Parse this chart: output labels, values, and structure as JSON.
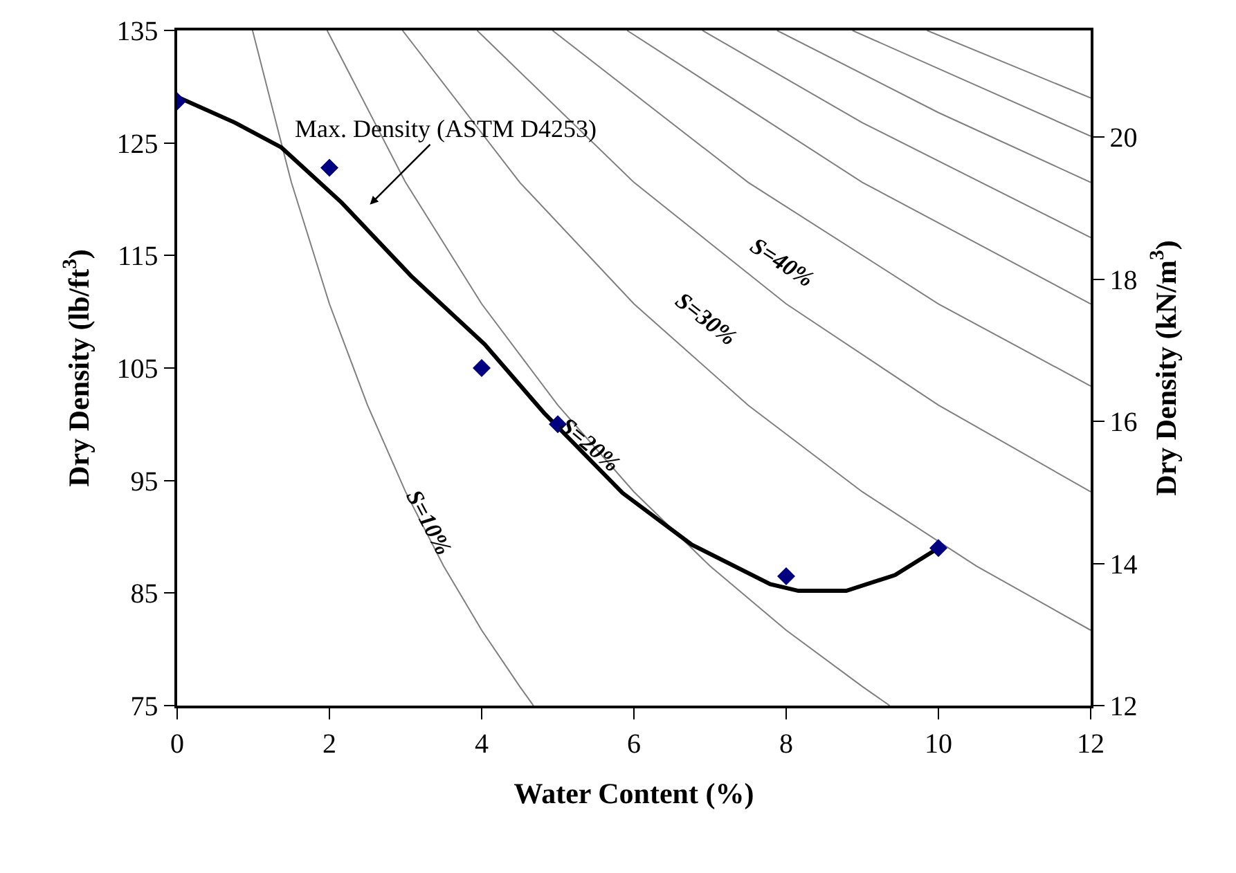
{
  "chart_data": {
    "type": "line",
    "xlabel": "Water Content (%)",
    "ylabel": "Dry Density (lb/ft$^{3}$)",
    "y2label": "Dry Density (kN/m$^{3}$)",
    "xlim": [
      0,
      12
    ],
    "xticks": [
      0,
      2,
      4,
      6,
      8,
      10,
      12
    ],
    "ylim": [
      75,
      135
    ],
    "yticks": [
      75,
      85,
      95,
      105,
      115,
      125,
      135
    ],
    "y2lim": [
      12,
      21.5
    ],
    "y2ticks": [
      12,
      14,
      16,
      18,
      20
    ],
    "series": [
      {
        "color": "#808080",
        "x": [
          0.99,
          1.5,
          2,
          2.5,
          3,
          3.5,
          4,
          4.5,
          4.68
        ],
        "values": [
          135,
          121.5,
          110.7,
          101.7,
          94,
          87.4,
          81.7,
          76.7,
          75
        ]
      },
      {
        "color": "#808080",
        "x": [
          1.97,
          3,
          4,
          5,
          6,
          7,
          8,
          9,
          9.36
        ],
        "values": [
          135,
          121.5,
          110.7,
          101.7,
          94,
          87.4,
          81.7,
          76.7,
          75
        ]
      },
      {
        "color": "#808080",
        "x": [
          2.96,
          4.5,
          6,
          7.5,
          9,
          10.5,
          12
        ],
        "values": [
          135,
          121.5,
          110.7,
          101.7,
          94,
          87.4,
          81.7
        ]
      },
      {
        "color": "#808080",
        "x": [
          3.94,
          6,
          8,
          10,
          12
        ],
        "values": [
          135,
          121.5,
          110.7,
          101.7,
          94
        ]
      },
      {
        "color": "#808080",
        "x": [
          4.93,
          7.5,
          10,
          12
        ],
        "values": [
          135,
          121.5,
          110.7,
          103.4
        ]
      },
      {
        "color": "#808080",
        "x": [
          5.91,
          9,
          12
        ],
        "values": [
          135,
          121.5,
          110.7
        ]
      },
      {
        "color": "#808080",
        "x": [
          6.9,
          9,
          12
        ],
        "values": [
          135,
          126.8,
          116.6
        ]
      },
      {
        "color": "#808080",
        "x": [
          7.88,
          10,
          12
        ],
        "values": [
          135,
          127.7,
          121.5
        ]
      },
      {
        "color": "#808080",
        "x": [
          8.87,
          12
        ],
        "values": [
          135,
          125.6
        ]
      },
      {
        "color": "#808080",
        "x": [
          9.85,
          12
        ],
        "values": [
          135,
          129
        ]
      },
      {
        "color": "#000000",
        "x": [
          0,
          0.76,
          1.37,
          2.16,
          3.07,
          4.04,
          4.82,
          5.85,
          6.76,
          7.79,
          8.16,
          8.79,
          9.43,
          10
        ],
        "values": [
          129.1,
          126.8,
          124.6,
          119.7,
          113.2,
          107.1,
          101,
          93.9,
          89.3,
          85.8,
          85.2,
          85.2,
          86.6,
          89
        ]
      },
      {
        "type": "scatter",
        "marker": "diamond",
        "color": "#000080",
        "x": [
          0,
          2,
          4,
          5,
          8,
          10
        ],
        "values": [
          128.7,
          122.8,
          105,
          100,
          86.5,
          89
        ]
      }
    ],
    "annotations": [
      "Max. Density (ASTM D4253)",
      "S=10%",
      "S=20%",
      "S=30%",
      "S=40%"
    ]
  }
}
